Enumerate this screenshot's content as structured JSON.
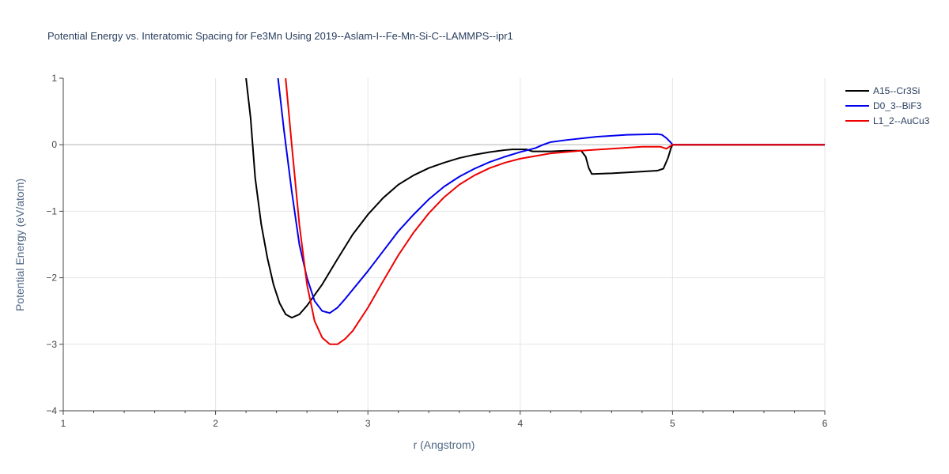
{
  "chart_data": {
    "type": "line",
    "title": "Potential Energy vs. Interatomic Spacing for Fe3Mn Using 2019--Aslam-I--Fe-Mn-Si-C--LAMMPS--ipr1",
    "xlabel": "r (Angstrom)",
    "ylabel": "Potential Energy (eV/atom)",
    "xlim": [
      1,
      6
    ],
    "ylim": [
      -4,
      1
    ],
    "x_ticks": [
      1,
      2,
      3,
      4,
      5,
      6
    ],
    "y_ticks": [
      1,
      0,
      -1,
      -2,
      -3,
      -4
    ],
    "grid": true,
    "zero_line": true,
    "legend_position": "top-right",
    "series": [
      {
        "name": "A15--Cr3Si",
        "color": "#000000",
        "x": [
          2.2,
          2.23,
          2.26,
          2.3,
          2.34,
          2.38,
          2.42,
          2.46,
          2.5,
          2.55,
          2.6,
          2.7,
          2.8,
          2.9,
          3.0,
          3.1,
          3.2,
          3.3,
          3.4,
          3.5,
          3.6,
          3.7,
          3.8,
          3.9,
          3.95,
          4.04,
          4.08,
          4.2,
          4.3,
          4.4,
          4.43,
          4.45,
          4.47,
          4.6,
          4.75,
          4.9,
          4.94,
          4.97,
          4.99,
          5.0,
          5.2,
          5.5,
          6.0
        ],
        "y": [
          1.0,
          0.4,
          -0.5,
          -1.2,
          -1.7,
          -2.1,
          -2.38,
          -2.55,
          -2.6,
          -2.55,
          -2.42,
          -2.1,
          -1.72,
          -1.35,
          -1.05,
          -0.8,
          -0.6,
          -0.46,
          -0.35,
          -0.27,
          -0.2,
          -0.15,
          -0.11,
          -0.08,
          -0.07,
          -0.07,
          -0.1,
          -0.1,
          -0.09,
          -0.09,
          -0.18,
          -0.35,
          -0.44,
          -0.43,
          -0.41,
          -0.39,
          -0.36,
          -0.2,
          -0.05,
          0.0,
          0.0,
          0.0,
          0.0
        ]
      },
      {
        "name": "D0_3--BiF3",
        "color": "#0000ee",
        "x": [
          2.41,
          2.45,
          2.5,
          2.55,
          2.6,
          2.65,
          2.7,
          2.75,
          2.8,
          2.85,
          2.9,
          3.0,
          3.1,
          3.2,
          3.3,
          3.4,
          3.5,
          3.6,
          3.7,
          3.8,
          3.9,
          4.0,
          4.1,
          4.15,
          4.2,
          4.3,
          4.5,
          4.7,
          4.9,
          4.93,
          4.96,
          4.99,
          5.0,
          5.5,
          6.0
        ],
        "y": [
          1.0,
          0.2,
          -0.7,
          -1.5,
          -2.0,
          -2.35,
          -2.5,
          -2.53,
          -2.45,
          -2.32,
          -2.18,
          -1.9,
          -1.6,
          -1.3,
          -1.05,
          -0.82,
          -0.63,
          -0.48,
          -0.36,
          -0.26,
          -0.18,
          -0.11,
          -0.05,
          0.0,
          0.04,
          0.07,
          0.12,
          0.15,
          0.16,
          0.15,
          0.1,
          0.03,
          0.0,
          0.0,
          0.0
        ]
      },
      {
        "name": "L1_2--AuCu3",
        "color": "#ee0000",
        "x": [
          2.46,
          2.5,
          2.55,
          2.6,
          2.65,
          2.7,
          2.75,
          2.8,
          2.85,
          2.9,
          3.0,
          3.1,
          3.2,
          3.3,
          3.4,
          3.5,
          3.6,
          3.7,
          3.8,
          3.9,
          4.0,
          4.1,
          4.2,
          4.4,
          4.6,
          4.8,
          4.92,
          4.96,
          4.98,
          5.0,
          5.5,
          6.0
        ],
        "y": [
          1.0,
          0.0,
          -1.2,
          -2.1,
          -2.65,
          -2.9,
          -3.0,
          -3.0,
          -2.92,
          -2.8,
          -2.45,
          -2.05,
          -1.66,
          -1.32,
          -1.03,
          -0.79,
          -0.6,
          -0.46,
          -0.35,
          -0.27,
          -0.21,
          -0.17,
          -0.13,
          -0.09,
          -0.06,
          -0.03,
          -0.03,
          -0.06,
          -0.03,
          0.0,
          0.0,
          0.0
        ]
      }
    ]
  }
}
